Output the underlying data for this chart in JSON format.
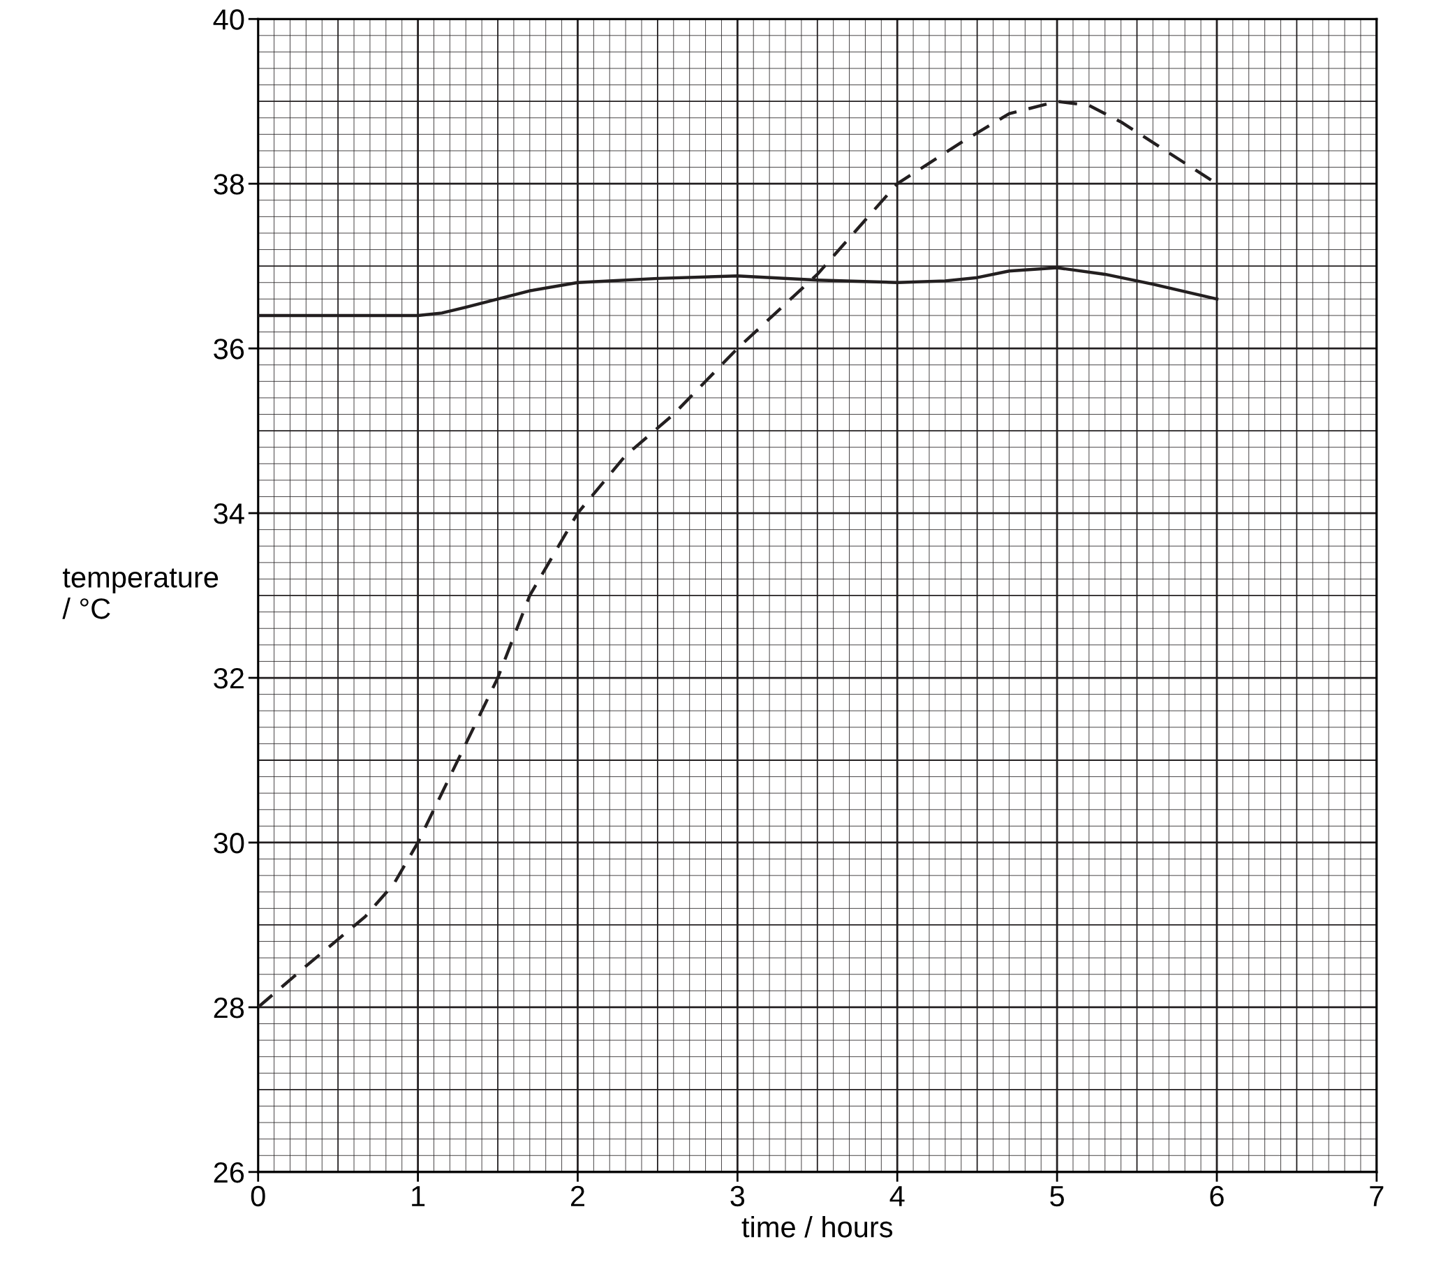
{
  "chart_data": {
    "type": "line",
    "xlabel": "time / hours",
    "ylabel": "temperature\n/ °C",
    "xlim": [
      0,
      7
    ],
    "ylim": [
      26,
      40
    ],
    "xticks": [
      0,
      1,
      2,
      3,
      4,
      5,
      6,
      7
    ],
    "yticks": [
      26,
      28,
      30,
      32,
      34,
      36,
      38,
      40
    ],
    "grid": true,
    "legend": false,
    "marker": "none",
    "series": [
      {
        "color": "#231f20",
        "line_style": "solid",
        "x": [
          0,
          0.5,
          1,
          1.15,
          1.3,
          1.5,
          1.7,
          2,
          2.5,
          3,
          3.5,
          4,
          4.3,
          4.5,
          4.7,
          5,
          5.3,
          5.6,
          6
        ],
        "values": [
          36.4,
          36.4,
          36.4,
          36.43,
          36.5,
          36.6,
          36.7,
          36.8,
          36.85,
          36.88,
          36.83,
          36.8,
          36.82,
          36.86,
          36.94,
          36.98,
          36.9,
          36.78,
          36.6
        ]
      },
      {
        "color": "#231f20",
        "line_style": "dashed",
        "x": [
          0,
          0.3,
          0.67,
          0.85,
          1,
          1.15,
          1.3,
          1.5,
          1.7,
          1.85,
          2,
          2.3,
          2.6,
          3,
          3.5,
          4,
          4.4,
          4.7,
          5,
          5.2,
          5.4,
          5.6,
          6
        ],
        "values": [
          28,
          28.5,
          29.1,
          29.5,
          30,
          30.6,
          31.2,
          32,
          33,
          33.5,
          34,
          34.7,
          35.2,
          36,
          36.9,
          38,
          38.5,
          38.85,
          39,
          38.95,
          38.75,
          38.5,
          38
        ]
      }
    ]
  }
}
